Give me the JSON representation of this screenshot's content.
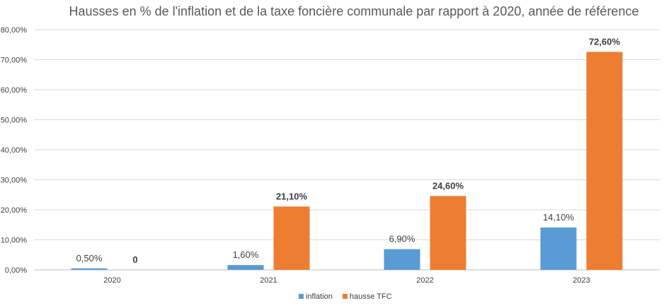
{
  "chart_data": {
    "type": "bar",
    "title": "Hausses en % de l'inflation et de la taxe foncière communale par rapport à 2020, année de référence",
    "categories": [
      "2020",
      "2021",
      "2022",
      "2023"
    ],
    "series": [
      {
        "name": "inflation",
        "color": "#5B9BD5",
        "values": [
          0.5,
          1.6,
          6.9,
          14.1
        ],
        "labels": [
          "0,50%",
          "1,60%",
          "6,90%",
          "14,10%"
        ],
        "label_bold": false
      },
      {
        "name": "hausse TFC",
        "color": "#ED7D31",
        "values": [
          0,
          21.1,
          24.6,
          72.6
        ],
        "labels": [
          "0",
          "21,10%",
          "24,60%",
          "72,60%"
        ],
        "label_bold": true
      }
    ],
    "ylim": [
      0,
      80
    ],
    "yticks": [
      0,
      10,
      20,
      30,
      40,
      50,
      60,
      70,
      80
    ],
    "ytick_labels": [
      "0,00%",
      "10,00%",
      "20,00%",
      "30,00%",
      "40,00%",
      "50,00%",
      "60,00%",
      "70,00%",
      "80,00%"
    ],
    "xlabel": "",
    "ylabel": "",
    "grid": true,
    "legend_position": "bottom"
  }
}
